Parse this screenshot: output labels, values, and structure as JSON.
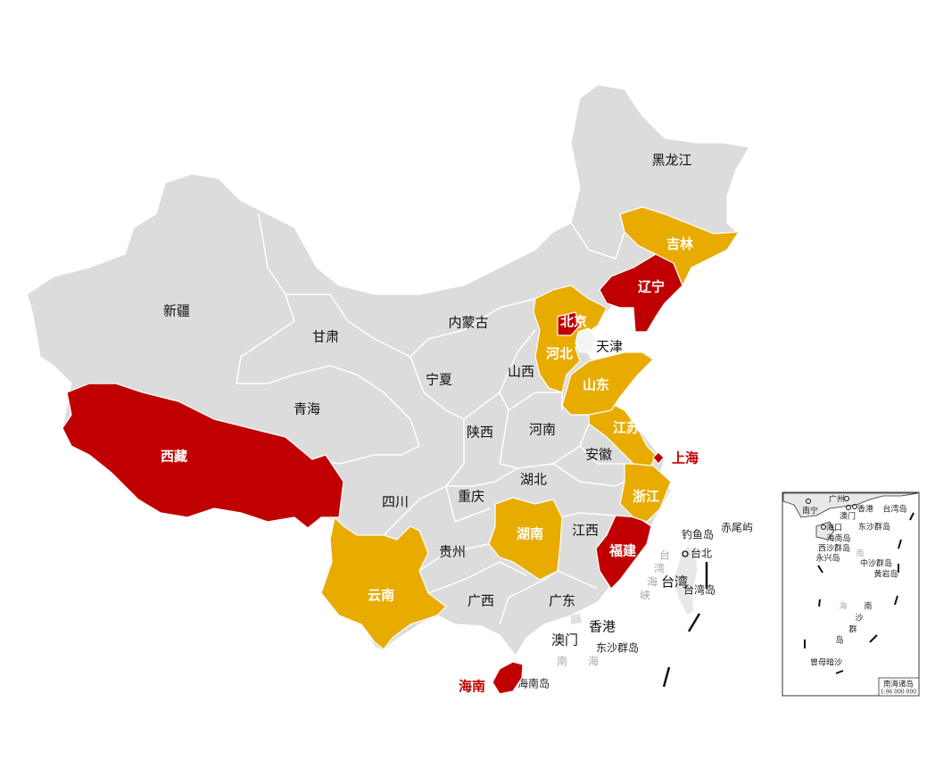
{
  "colors": {
    "red": "#c00000",
    "yellow": "#e8ac00",
    "gray": "#dcdcdc",
    "label_red": "#c00000"
  },
  "legend_categories": {
    "red": [
      "西藏",
      "北京",
      "辽宁",
      "上海",
      "福建",
      "海南"
    ],
    "yellow": [
      "吉林",
      "河北",
      "山东",
      "江苏",
      "浙江",
      "湖南",
      "云南"
    ]
  },
  "provinces": {
    "heilongjiang": "黑龙江",
    "jilin": "吉林",
    "liaoning": "辽宁",
    "neimenggu": "内蒙古",
    "xinjiang": "新疆",
    "gansu": "甘肃",
    "beijing": "北京",
    "tianjin": "天津",
    "hebei": "河北",
    "ningxia": "宁夏",
    "shanxi": "山西",
    "shandong": "山东",
    "qinghai": "青海",
    "xizang": "西藏",
    "shaanxi": "陕西",
    "henan": "河南",
    "jiangsu": "江苏",
    "anhui": "安徽",
    "shanghai": "上海",
    "sichuan": "四川",
    "chongqing": "重庆",
    "hubei": "湖北",
    "zhejiang": "浙江",
    "hunan": "湖南",
    "jiangxi": "江西",
    "fujian": "福建",
    "guizhou": "贵州",
    "yunnan": "云南",
    "guangxi": "广西",
    "guangdong": "广东",
    "taiwan": "台湾",
    "xianggang": "香港",
    "aomen": "澳门",
    "hainan": "海南"
  },
  "places": {
    "dongsha": "东沙群岛",
    "hainan_island": "海南岛",
    "diaoyu": "钓鱼岛",
    "chiwei": "赤尾屿",
    "taipei": "台北",
    "taiwan_island": "台湾岛",
    "sea_nan": "南",
    "sea_hai": "海",
    "strait": [
      "台",
      "湾",
      "海",
      "峡"
    ]
  },
  "inset": {
    "labels": {
      "nanning": "南宁",
      "guangzhou": "广州",
      "aomen": "澳门",
      "xianggang": "香港",
      "taiwan_island": "台湾岛",
      "haikou": "海口",
      "dongsha": "东沙群岛",
      "hainan_island": "海南岛",
      "xisha": "西沙群岛",
      "yongxing": "永兴岛",
      "zhongsha": "中沙群岛",
      "huangyan": "黄岩岛",
      "zengmu": "曾母暗沙",
      "sea": [
        "南",
        "海"
      ],
      "nansha": [
        "南",
        "沙",
        "群",
        "岛"
      ]
    },
    "title": "南海诸岛",
    "scale": "1:96 000 000"
  }
}
